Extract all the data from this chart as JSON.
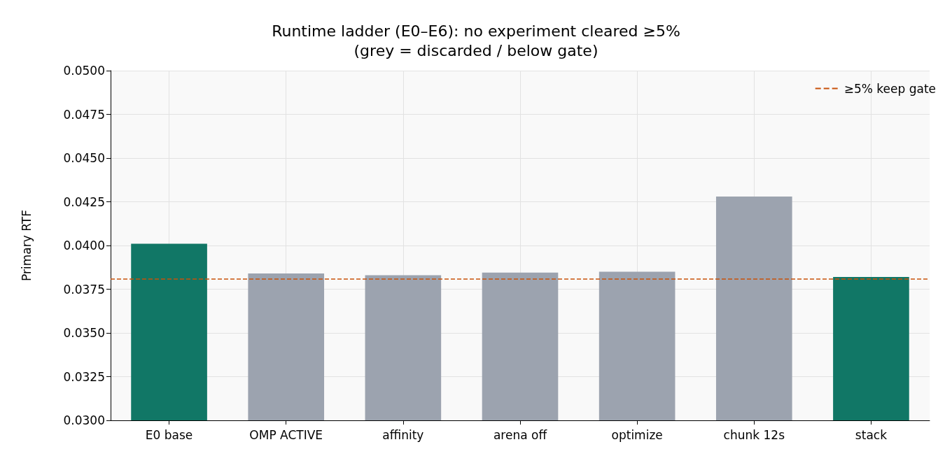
{
  "chart_data": {
    "type": "bar",
    "title": "Runtime ladder (E0–E6): no experiment cleared ≥5%",
    "subtitle": "(grey = discarded / below gate)",
    "ylabel": "Primary RTF",
    "categories": [
      "E0 base",
      "OMP ACTIVE",
      "affinity",
      "arena off",
      "optimize",
      "chunk 12s",
      "stack"
    ],
    "values": [
      0.0401,
      0.0384,
      0.0383,
      0.03845,
      0.0385,
      0.0428,
      0.0382
    ],
    "colors": [
      "#117766",
      "#9ca3af",
      "#9ca3af",
      "#9ca3af",
      "#9ca3af",
      "#9ca3af",
      "#117766"
    ],
    "ylim": [
      0.03,
      0.05
    ],
    "yticks": [
      {
        "value": 0.03,
        "label": "0.0300"
      },
      {
        "value": 0.0325,
        "label": "0.0325"
      },
      {
        "value": 0.035,
        "label": "0.0350"
      },
      {
        "value": 0.0375,
        "label": "0.0375"
      },
      {
        "value": 0.04,
        "label": "0.0400"
      },
      {
        "value": 0.0425,
        "label": "0.0425"
      },
      {
        "value": 0.045,
        "label": "0.0450"
      },
      {
        "value": 0.0475,
        "label": "0.0475"
      },
      {
        "value": 0.05,
        "label": "0.0500"
      }
    ],
    "ref_lines": [
      {
        "axis": "y",
        "value": 0.0381,
        "label": "≥5% keep gate",
        "color": "#c8510a",
        "line_style": "dashed"
      }
    ],
    "grid": true,
    "legend": "top right"
  }
}
